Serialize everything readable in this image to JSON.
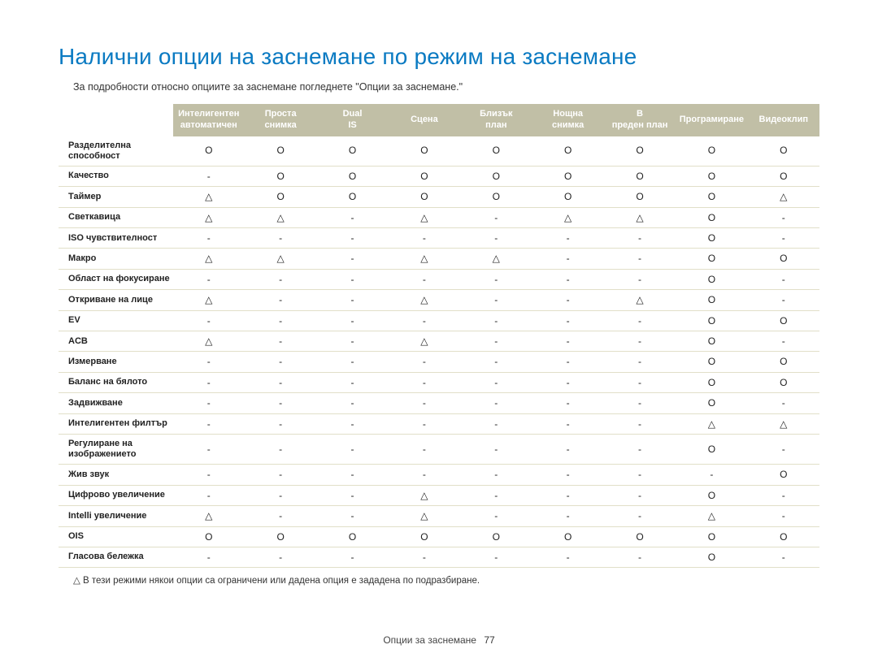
{
  "title": "Налични опции на заснемане по режим на заснемане",
  "subtitle": "За подробности относно опциите за заснемане погледнете \"Опции за заснемане.\"",
  "footer_label": "Опции за заснемане",
  "footer_page": "77",
  "footnote_tri": "△ В тези режими някои опции са ограничени или дадена опция е зададена по подразбиране.",
  "symbols": {
    "circle": "O",
    "triangle": "△",
    "dash": "-"
  },
  "columns": [
    "Интелигентен автоматичен",
    "Проста снимка",
    "Dual IS",
    "Сцена",
    "Близък план",
    "Нощна снимка",
    "В преден план",
    "Програмиране",
    "Видеоклип"
  ],
  "rows": [
    {
      "label": "Разделителна способност",
      "cells": [
        "c",
        "c",
        "c",
        "c",
        "c",
        "c",
        "c",
        "c",
        "c"
      ]
    },
    {
      "label": "Качество",
      "cells": [
        "d",
        "c",
        "c",
        "c",
        "c",
        "c",
        "c",
        "c",
        "c"
      ]
    },
    {
      "label": "Таймер",
      "cells": [
        "t",
        "c",
        "c",
        "c",
        "c",
        "c",
        "c",
        "c",
        "t"
      ]
    },
    {
      "label": "Светкавица",
      "cells": [
        "t",
        "t",
        "d",
        "t",
        "d",
        "t",
        "t",
        "c",
        "d"
      ]
    },
    {
      "label": "ISO чувствителност",
      "cells": [
        "d",
        "d",
        "d",
        "d",
        "d",
        "d",
        "d",
        "c",
        "d"
      ]
    },
    {
      "label": "Макро",
      "cells": [
        "t",
        "t",
        "d",
        "t",
        "t",
        "d",
        "d",
        "c",
        "c"
      ]
    },
    {
      "label": "Област на фокусиране",
      "cells": [
        "d",
        "d",
        "d",
        "d",
        "d",
        "d",
        "d",
        "c",
        "d"
      ]
    },
    {
      "label": "Откриване на лице",
      "cells": [
        "t",
        "d",
        "d",
        "t",
        "d",
        "d",
        "t",
        "c",
        "d"
      ]
    },
    {
      "label": "EV",
      "cells": [
        "d",
        "d",
        "d",
        "d",
        "d",
        "d",
        "d",
        "c",
        "c"
      ]
    },
    {
      "label": "ACB",
      "cells": [
        "t",
        "d",
        "d",
        "t",
        "d",
        "d",
        "d",
        "c",
        "d"
      ]
    },
    {
      "label": "Измерване",
      "cells": [
        "d",
        "d",
        "d",
        "d",
        "d",
        "d",
        "d",
        "c",
        "c"
      ]
    },
    {
      "label": "Баланс на бялото",
      "cells": [
        "d",
        "d",
        "d",
        "d",
        "d",
        "d",
        "d",
        "c",
        "c"
      ]
    },
    {
      "label": "Задвижване",
      "cells": [
        "d",
        "d",
        "d",
        "d",
        "d",
        "d",
        "d",
        "c",
        "d"
      ]
    },
    {
      "label": "Интелигентен филтър",
      "cells": [
        "d",
        "d",
        "d",
        "d",
        "d",
        "d",
        "d",
        "t",
        "t"
      ]
    },
    {
      "label": "Регулиране на изображението",
      "cells": [
        "d",
        "d",
        "d",
        "d",
        "d",
        "d",
        "d",
        "c",
        "d"
      ]
    },
    {
      "label": "Жив звук",
      "cells": [
        "d",
        "d",
        "d",
        "d",
        "d",
        "d",
        "d",
        "d",
        "c"
      ]
    },
    {
      "label": "Цифрово увеличение",
      "cells": [
        "d",
        "d",
        "d",
        "t",
        "d",
        "d",
        "d",
        "c",
        "d"
      ]
    },
    {
      "label": "Intelli увеличение",
      "cells": [
        "t",
        "d",
        "d",
        "t",
        "d",
        "d",
        "d",
        "t",
        "d"
      ]
    },
    {
      "label": "OIS",
      "cells": [
        "c",
        "c",
        "c",
        "c",
        "c",
        "c",
        "c",
        "c",
        "c"
      ]
    },
    {
      "label": "Гласова бележка",
      "cells": [
        "d",
        "d",
        "d",
        "d",
        "d",
        "d",
        "d",
        "c",
        "d"
      ]
    }
  ],
  "style": {
    "title_color": "#0a7ac2",
    "header_bg": "#c1bfa6",
    "header_fg": "#ffffff",
    "row_border": "#e1dfc8",
    "page_bg": "#ffffff",
    "title_fontsize": 28,
    "body_fontsize": 12,
    "rowlabel_fontsize": 11
  }
}
